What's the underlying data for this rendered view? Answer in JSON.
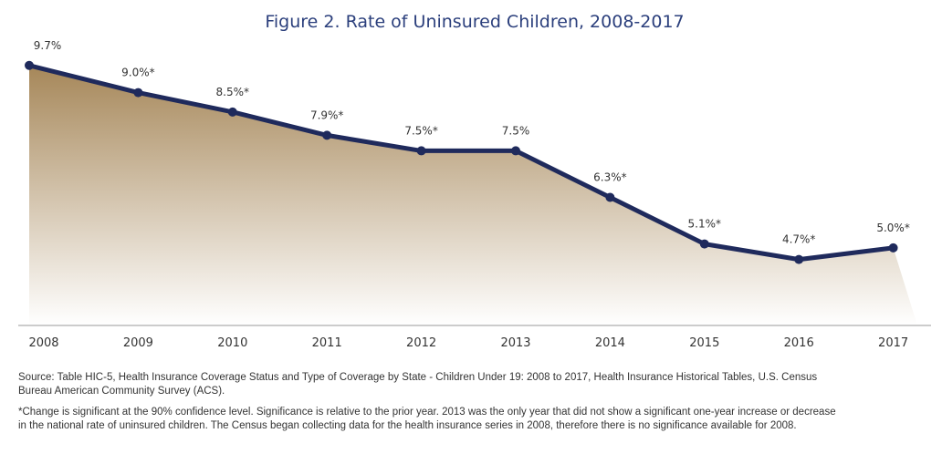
{
  "chart_data": {
    "type": "line",
    "title": "Figure 2. Rate of Uninsured Children, 2008-2017",
    "categories": [
      "2008",
      "2009",
      "2010",
      "2011",
      "2012",
      "2013",
      "2014",
      "2015",
      "2016",
      "2017"
    ],
    "series": [
      {
        "color": "#1f2a5c",
        "values": [
          9.7,
          9.0,
          8.5,
          7.9,
          7.5,
          7.5,
          6.3,
          5.1,
          4.7,
          5.0
        ],
        "value_labels": [
          "9.7%",
          "9.0%*",
          "8.5%*",
          "7.9%*",
          "7.5%*",
          "7.5%",
          "6.3%*",
          "5.1%*",
          "4.7%*",
          "5.0%*"
        ]
      }
    ],
    "ylim": [
      3,
      10
    ],
    "area_color": "#a68759",
    "source": "Source: Table HIC-5, Health Insurance Coverage Status and Type of Coverage by State - Children Under 19: 2008 to 2017, Health Insurance Historical Tables, U.S. Census Bureau American Community Survey (ACS).",
    "note": "*Change is significant at the 90% confidence level. Significance is relative to the prior year. 2013 was the only year that did not show a significant one-year increase or decrease in the national rate of uninsured children. The Census began collecting data for the health insurance series in 2008, therefore there is no significance available for 2008."
  }
}
